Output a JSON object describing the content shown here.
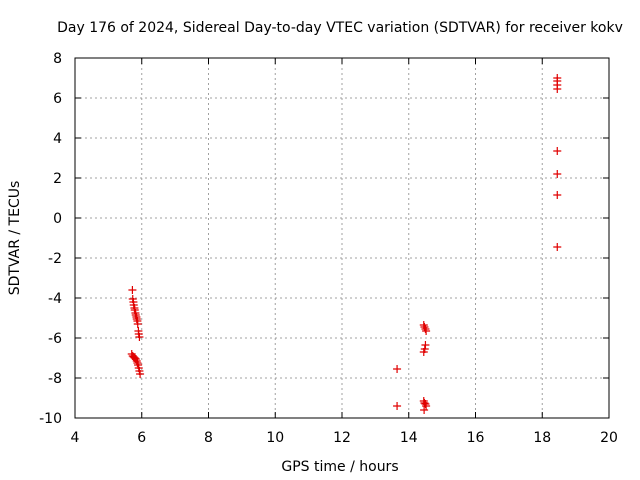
{
  "chart_data": {
    "type": "scatter",
    "title": "Day 176 of 2024, Sidereal Day-to-day VTEC variation (SDTVAR) for receiver kokv",
    "xlabel": "GPS time / hours",
    "ylabel": "SDTVAR / TECUs",
    "xlim": [
      4,
      20
    ],
    "ylim": [
      -10,
      8
    ],
    "xticks": [
      4,
      6,
      8,
      10,
      12,
      14,
      16,
      18,
      20
    ],
    "yticks": [
      -10,
      -8,
      -6,
      -4,
      -2,
      0,
      2,
      4,
      6,
      8
    ],
    "grid": true,
    "marker": "plus",
    "color": "#e00000",
    "series": [
      {
        "name": "kokv",
        "points": [
          [
            5.72,
            -3.6
          ],
          [
            5.73,
            -4.05
          ],
          [
            5.75,
            -4.2
          ],
          [
            5.76,
            -4.35
          ],
          [
            5.78,
            -4.5
          ],
          [
            5.79,
            -4.6
          ],
          [
            5.81,
            -4.75
          ],
          [
            5.82,
            -4.85
          ],
          [
            5.84,
            -4.95
          ],
          [
            5.85,
            -5.05
          ],
          [
            5.87,
            -5.15
          ],
          [
            5.88,
            -5.3
          ],
          [
            5.9,
            -5.65
          ],
          [
            5.91,
            -5.8
          ],
          [
            5.93,
            -5.95
          ],
          [
            5.7,
            -6.8
          ],
          [
            5.73,
            -6.9
          ],
          [
            5.76,
            -6.95
          ],
          [
            5.79,
            -7.0
          ],
          [
            5.82,
            -7.05
          ],
          [
            5.85,
            -7.15
          ],
          [
            5.87,
            -7.25
          ],
          [
            5.89,
            -7.35
          ],
          [
            5.91,
            -7.5
          ],
          [
            5.93,
            -7.65
          ],
          [
            5.95,
            -7.8
          ],
          [
            13.65,
            -7.55
          ],
          [
            13.65,
            -9.4
          ],
          [
            14.45,
            -5.35
          ],
          [
            14.47,
            -5.45
          ],
          [
            14.5,
            -5.55
          ],
          [
            14.52,
            -5.65
          ],
          [
            14.5,
            -6.35
          ],
          [
            14.48,
            -6.55
          ],
          [
            14.45,
            -6.7
          ],
          [
            14.45,
            -9.15
          ],
          [
            14.47,
            -9.25
          ],
          [
            14.5,
            -9.3
          ],
          [
            14.52,
            -9.4
          ],
          [
            14.46,
            -9.6
          ],
          [
            18.45,
            -1.45
          ],
          [
            18.45,
            1.15
          ],
          [
            18.45,
            2.2
          ],
          [
            18.45,
            3.35
          ],
          [
            18.45,
            6.45
          ],
          [
            18.45,
            6.65
          ],
          [
            18.45,
            6.85
          ],
          [
            18.45,
            7.0
          ]
        ]
      }
    ]
  }
}
